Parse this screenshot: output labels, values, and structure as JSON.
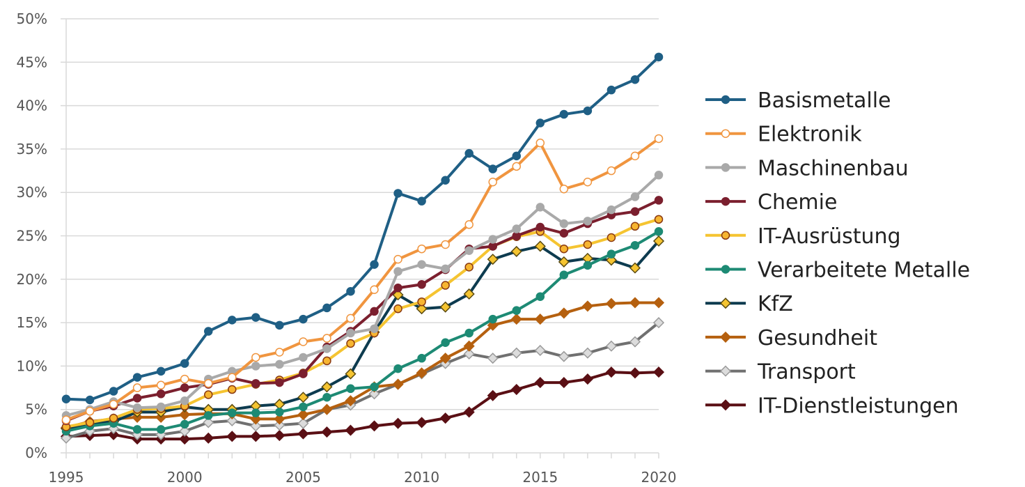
{
  "chart_data": {
    "type": "line",
    "title": "",
    "xlabel": "",
    "ylabel": "",
    "x": [
      1995,
      1996,
      1997,
      1998,
      1999,
      2000,
      2001,
      2002,
      2003,
      2004,
      2005,
      2006,
      2007,
      2008,
      2009,
      2010,
      2011,
      2012,
      2013,
      2014,
      2015,
      2016,
      2017,
      2018,
      2019,
      2020
    ],
    "x_ticks": [
      "1995",
      "2000",
      "2005",
      "2010",
      "2015",
      "2020"
    ],
    "y_ticks": [
      "0%",
      "5%",
      "10%",
      "15%",
      "20%",
      "25%",
      "30%",
      "35%",
      "40%",
      "45%",
      "50%"
    ],
    "ylim": [
      0,
      50
    ],
    "y_unit": "%",
    "grid": "horizontal",
    "legend_position": "right",
    "series": [
      {
        "name": "Basismetalle",
        "color": "#1f5f85",
        "marker": "circle",
        "marker_fill": "#1f5f85",
        "marker_stroke": "#1f5f85",
        "values": [
          6.2,
          6.1,
          7.1,
          8.7,
          9.4,
          10.3,
          14.0,
          15.3,
          15.6,
          14.7,
          15.4,
          16.7,
          18.6,
          21.7,
          29.9,
          29.0,
          31.4,
          34.5,
          32.7,
          34.2,
          38.0,
          39.0,
          39.4,
          41.8,
          43.0,
          45.6
        ]
      },
      {
        "name": "Elektronik",
        "color": "#f0953f",
        "marker": "circle",
        "marker_fill": "#ffffff",
        "marker_stroke": "#f0953f",
        "values": [
          3.8,
          4.8,
          5.6,
          7.5,
          7.8,
          8.5,
          8.0,
          8.7,
          11.0,
          11.6,
          12.8,
          13.2,
          15.5,
          18.8,
          22.3,
          23.5,
          24.0,
          26.3,
          31.2,
          33.0,
          35.7,
          30.4,
          31.2,
          32.5,
          34.2,
          36.2
        ]
      },
      {
        "name": "Maschinenbau",
        "color": "#a9a9a9",
        "marker": "circle",
        "marker_fill": "#a9a9a9",
        "marker_stroke": "#a9a9a9",
        "values": [
          4.3,
          5.0,
          5.9,
          5.2,
          5.3,
          6.0,
          8.5,
          9.4,
          10.0,
          10.2,
          11.0,
          12.0,
          13.8,
          14.3,
          20.9,
          21.7,
          21.2,
          23.3,
          24.6,
          25.8,
          28.3,
          26.4,
          26.7,
          28.0,
          29.5,
          32.0
        ]
      },
      {
        "name": "Chemie",
        "color": "#7b1f2e",
        "marker": "circle",
        "marker_fill": "#7b1f2e",
        "marker_stroke": "#7b1f2e",
        "values": [
          3.7,
          4.8,
          5.4,
          6.3,
          6.8,
          7.5,
          7.9,
          8.6,
          8.0,
          8.1,
          9.1,
          12.2,
          14.0,
          16.3,
          19.0,
          19.4,
          21.1,
          23.5,
          23.8,
          25.0,
          26.0,
          25.3,
          26.4,
          27.4,
          27.8,
          29.1
        ]
      },
      {
        "name": "IT-Ausrüstung",
        "color": "#f5c431",
        "marker": "circle",
        "marker_fill": "#f7b531",
        "marker_stroke": "#8a3a12",
        "values": [
          3.0,
          3.5,
          4.0,
          5.0,
          5.1,
          5.4,
          6.7,
          7.3,
          7.9,
          8.4,
          9.2,
          10.6,
          12.6,
          13.8,
          16.6,
          17.4,
          19.3,
          21.4,
          23.8,
          24.9,
          25.5,
          23.5,
          24.0,
          24.8,
          26.1,
          26.9
        ]
      },
      {
        "name": "Verarbeitete Metalle",
        "color": "#1d8a74",
        "marker": "circle",
        "marker_fill": "#1d8a74",
        "marker_stroke": "#1d8a74",
        "values": [
          2.5,
          3.1,
          3.4,
          2.7,
          2.7,
          3.3,
          4.3,
          4.6,
          4.6,
          4.7,
          5.3,
          6.4,
          7.4,
          7.6,
          9.7,
          10.9,
          12.7,
          13.8,
          15.4,
          16.4,
          18.0,
          20.5,
          21.6,
          22.9,
          23.9,
          25.5
        ]
      },
      {
        "name": "KfZ",
        "color": "#0d3b4f",
        "marker": "diamond",
        "marker_fill": "#f5c431",
        "marker_stroke": "#5a4a10",
        "values": [
          2.8,
          3.3,
          3.6,
          4.7,
          4.7,
          5.3,
          5.0,
          5.0,
          5.4,
          5.6,
          6.4,
          7.6,
          9.1,
          13.9,
          18.2,
          16.6,
          16.8,
          18.3,
          22.3,
          23.2,
          23.8,
          22.0,
          22.4,
          22.2,
          21.3,
          24.4
        ]
      },
      {
        "name": "Gesundheit",
        "color": "#b5600f",
        "marker": "diamond",
        "marker_fill": "#b5600f",
        "marker_stroke": "#b5600f",
        "values": [
          2.9,
          3.6,
          3.9,
          4.1,
          4.1,
          4.4,
          4.5,
          4.5,
          3.9,
          3.9,
          4.4,
          5.0,
          6.0,
          7.6,
          7.9,
          9.2,
          10.9,
          12.3,
          14.7,
          15.4,
          15.4,
          16.1,
          16.9,
          17.2,
          17.3,
          17.3
        ]
      },
      {
        "name": "Transport",
        "color": "#707070",
        "marker": "diamond",
        "marker_fill": "#dcdcdc",
        "marker_stroke": "#9a9a9a",
        "values": [
          1.7,
          2.5,
          2.8,
          2.1,
          2.1,
          2.5,
          3.5,
          3.7,
          3.1,
          3.2,
          3.4,
          5.0,
          5.5,
          6.8,
          7.9,
          9.1,
          10.3,
          11.4,
          10.9,
          11.5,
          11.8,
          11.1,
          11.5,
          12.3,
          12.8,
          15.0
        ]
      },
      {
        "name": "IT-Dienstleistungen",
        "color": "#5a0f14",
        "marker": "diamond",
        "marker_fill": "#5a0f14",
        "marker_stroke": "#5a0f14",
        "values": [
          1.9,
          2.0,
          2.1,
          1.6,
          1.6,
          1.6,
          1.7,
          1.9,
          1.9,
          2.0,
          2.2,
          2.4,
          2.6,
          3.1,
          3.4,
          3.5,
          4.0,
          4.7,
          6.6,
          7.3,
          8.1,
          8.1,
          8.5,
          9.3,
          9.2,
          9.3
        ]
      }
    ]
  }
}
